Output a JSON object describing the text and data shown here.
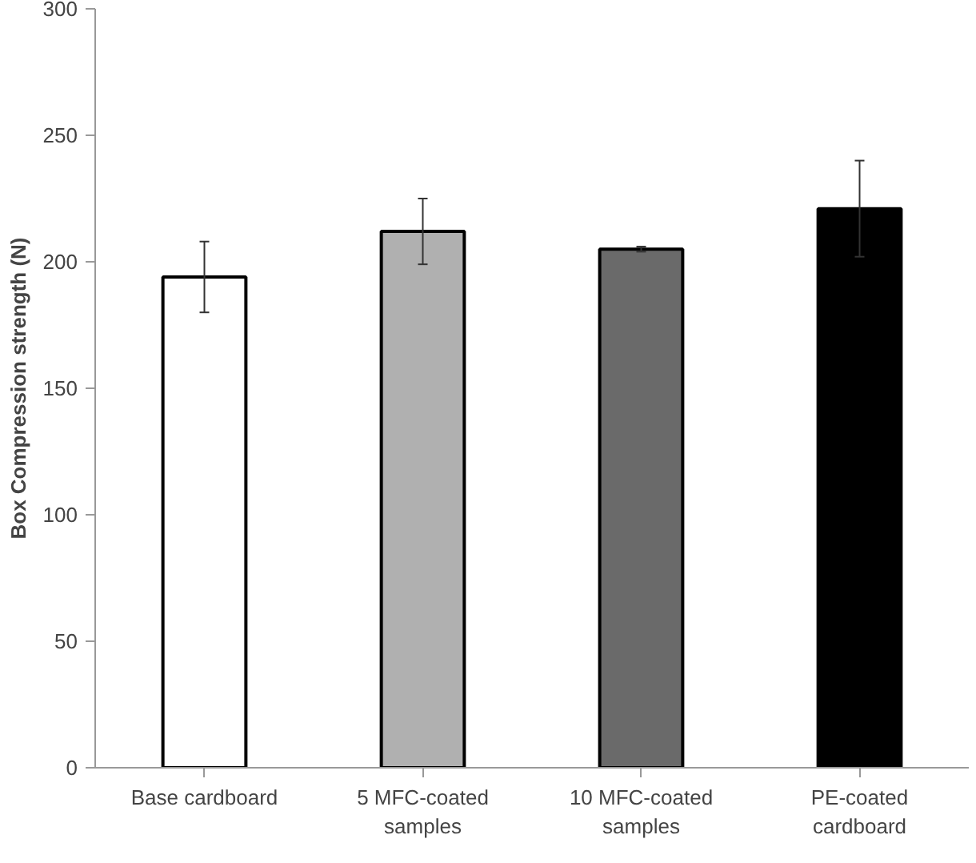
{
  "chart_data": {
    "type": "bar",
    "ylabel": "Box Compression strength (N)",
    "categories": [
      "Base cardboard",
      "5 MFC-coated samples",
      "10 MFC-coated samples",
      "PE-coated cardboard"
    ],
    "values": [
      194,
      212,
      205,
      221
    ],
    "colors": [
      "#ffffff",
      "#b0b0b0",
      "#6a6a6a",
      "#000000"
    ],
    "errors": [
      14,
      13,
      1,
      19
    ],
    "ylim": [
      0,
      300
    ],
    "yticks": [
      0,
      50,
      100,
      150,
      200,
      250,
      300
    ],
    "grid": false
  }
}
